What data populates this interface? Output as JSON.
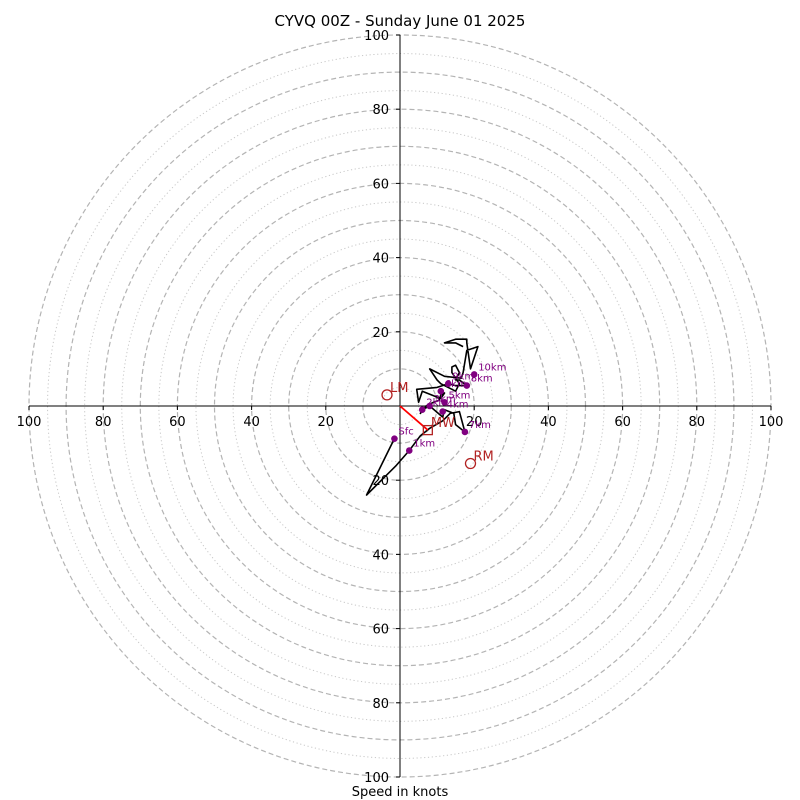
{
  "chart_data": {
    "type": "hodograph",
    "title": "CYVQ 00Z - Sunday June 01 2025",
    "xlabel": "Speed in knots",
    "units": "knots",
    "range": [
      -100,
      100
    ],
    "major_rings": [
      10,
      20,
      30,
      40,
      50,
      60,
      70,
      80,
      90,
      100
    ],
    "minor_rings": [
      5,
      15,
      25,
      35,
      45,
      55,
      65,
      75,
      85,
      95
    ],
    "x_tick_values": [
      -100,
      -80,
      -60,
      -40,
      -20,
      20,
      40,
      60,
      80,
      100
    ],
    "x_tick_labels": [
      "100",
      "80",
      "60",
      "40",
      "20",
      "20",
      "40",
      "60",
      "80",
      "100"
    ],
    "y_tick_values": [
      100,
      80,
      60,
      40,
      20,
      -20,
      -40,
      -60,
      -80,
      -100
    ],
    "y_tick_labels": [
      "100",
      "80",
      "60",
      "40",
      "20",
      "20",
      "40",
      "60",
      "80",
      "100"
    ],
    "grid": true,
    "series": [
      {
        "type": "line",
        "color": "#000000",
        "points": [
          [
            -1.5,
            -8.8
          ],
          [
            -9,
            -24
          ],
          [
            -1,
            -16
          ],
          [
            2.5,
            -12
          ],
          [
            5.5,
            -8
          ],
          [
            8,
            -6
          ],
          [
            11.5,
            -4
          ],
          [
            13.5,
            -2
          ],
          [
            16,
            -1.5
          ],
          [
            17.5,
            -7
          ],
          [
            15,
            -5
          ],
          [
            14.5,
            -2
          ],
          [
            12,
            -1
          ],
          [
            11.5,
            -3
          ],
          [
            8,
            0
          ],
          [
            6,
            -1
          ],
          [
            5.5,
            -2
          ],
          [
            7,
            0
          ],
          [
            9,
            1
          ],
          [
            10.5,
            1.5
          ],
          [
            11,
            3
          ],
          [
            12,
            3.5
          ],
          [
            11,
            2
          ],
          [
            6,
            4
          ],
          [
            5,
            1
          ],
          [
            4.5,
            4.5
          ],
          [
            10,
            5
          ],
          [
            13,
            6
          ],
          [
            15,
            5.5
          ],
          [
            18,
            5.5
          ],
          [
            16,
            7
          ],
          [
            15,
            7
          ],
          [
            16,
            9
          ],
          [
            15,
            11
          ],
          [
            14,
            10.5
          ],
          [
            14,
            9
          ],
          [
            16,
            6
          ],
          [
            15,
            4
          ],
          [
            11,
            6
          ],
          [
            10,
            7
          ],
          [
            8,
            10
          ],
          [
            12,
            8
          ],
          [
            16.5,
            7.5
          ],
          [
            17,
            9
          ],
          [
            18,
            15
          ],
          [
            21,
            16
          ],
          [
            19,
            10
          ],
          [
            18,
            17
          ],
          [
            18,
            18
          ],
          [
            15,
            18
          ],
          [
            12,
            17
          ],
          [
            15,
            17
          ],
          [
            17,
            16
          ]
        ]
      }
    ],
    "height_markers": [
      {
        "label": "Sfc",
        "u": -1.5,
        "v": -8.8
      },
      {
        "label": "1km",
        "u": 2.5,
        "v": -12
      },
      {
        "label": "2km",
        "u": 6,
        "v": -1
      },
      {
        "label": "3km",
        "u": 8,
        "v": 0
      },
      {
        "label": "4km",
        "u": 11.5,
        "v": -1.5
      },
      {
        "label": "5km",
        "u": 12,
        "v": 1
      },
      {
        "label": "6km",
        "u": 11,
        "v": 4
      },
      {
        "label": "7km",
        "u": 17.5,
        "v": -7
      },
      {
        "label": "8km",
        "u": 18,
        "v": 5.5
      },
      {
        "label": "9km",
        "u": 13,
        "v": 6
      },
      {
        "label": "10km",
        "u": 20,
        "v": 8.5
      }
    ],
    "storm_motion": [
      {
        "label": "LM",
        "u": -3.5,
        "v": 3,
        "marker": "circle",
        "color": "#b22222"
      },
      {
        "label": "RM",
        "u": 19,
        "v": -15.5,
        "marker": "circle",
        "color": "#b22222"
      },
      {
        "label": "MW",
        "u": 7.5,
        "v": -6.5,
        "marker": "square",
        "color": "#b22222"
      }
    ],
    "shear_vector": {
      "from": [
        0,
        0
      ],
      "to": [
        7.5,
        -6.5
      ],
      "color": "#ff0000"
    }
  }
}
